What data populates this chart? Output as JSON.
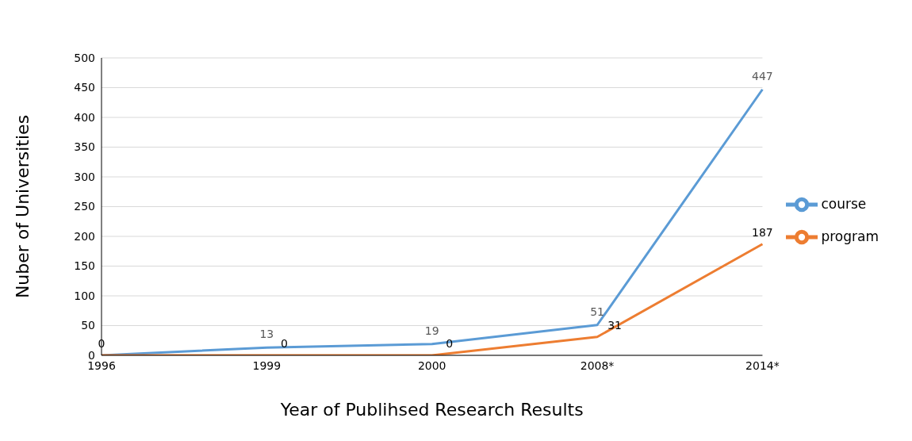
{
  "chart_data": {
    "type": "line",
    "xlabel": "Year of Publihsed Research Results",
    "ylabel": "Nuber of Universities",
    "categories": [
      "1996",
      "1999",
      "2000",
      "2008*",
      "2014*"
    ],
    "series": [
      {
        "name": "course",
        "color": "#5b9bd5",
        "values": [
          0,
          13,
          19,
          51,
          447
        ],
        "value_labels": [
          null,
          "13",
          "19",
          "51",
          "447"
        ]
      },
      {
        "name": "program",
        "color": "#ed7d31",
        "values": [
          0,
          0,
          0,
          31,
          187
        ],
        "value_labels": [
          "0",
          "0",
          "0",
          "31",
          "187"
        ]
      }
    ],
    "ylim": [
      0,
      500
    ],
    "yticks": [
      0,
      50,
      100,
      150,
      200,
      250,
      300,
      350,
      400,
      450,
      500
    ],
    "grid": "y",
    "legend": "right",
    "marker": "none",
    "line_style": "solid"
  }
}
